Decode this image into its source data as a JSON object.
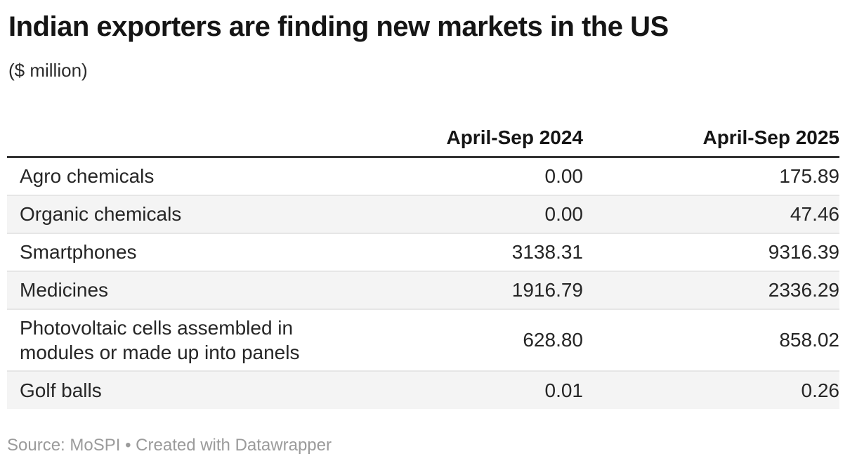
{
  "header": {
    "title": "Indian exporters are finding new markets in the US",
    "subtitle": "($ million)"
  },
  "table": {
    "col_headers": [
      "April-Sep 2024",
      "April-Sep 2025"
    ],
    "rows": [
      {
        "label": "Agro chemicals",
        "v2024": "0.00",
        "v2025": "175.89"
      },
      {
        "label": "Organic chemicals",
        "v2024": "0.00",
        "v2025": "47.46"
      },
      {
        "label": "Smartphones",
        "v2024": "3138.31",
        "v2025": "9316.39"
      },
      {
        "label": "Medicines",
        "v2024": "1916.79",
        "v2025": "2336.29"
      },
      {
        "label": "Photovoltaic cells assembled in modules or made up into panels",
        "v2024": "628.80",
        "v2025": "858.02"
      },
      {
        "label": "Golf balls",
        "v2024": "0.01",
        "v2025": "0.26"
      }
    ]
  },
  "footer": {
    "source_label": "Source: ",
    "source_name": "MoSPI",
    "separator": " • ",
    "attribution": "Created with Datawrapper"
  },
  "colors": {
    "title_text": "#151515",
    "body_text": "#262626",
    "header_rule": "#333333",
    "zebra_row": "#f4f4f4",
    "row_border": "#e6e6e6",
    "footer_text": "#9b9b9b"
  },
  "chart_data": {
    "type": "table",
    "title": "Indian exporters are finding new markets in the US",
    "subtitle": "($ million)",
    "unit": "$ million",
    "columns": [
      "",
      "April-Sep 2024",
      "April-Sep 2025"
    ],
    "rows": [
      [
        "Agro chemicals",
        0.0,
        175.89
      ],
      [
        "Organic chemicals",
        0.0,
        47.46
      ],
      [
        "Smartphones",
        3138.31,
        9316.39
      ],
      [
        "Medicines",
        1916.79,
        2336.29
      ],
      [
        "Photovoltaic cells assembled in modules or made up into panels",
        628.8,
        858.02
      ],
      [
        "Golf balls",
        0.01,
        0.26
      ]
    ],
    "layout_hints": {
      "numeric_alignment": "right",
      "zebra_striping": true,
      "header_rule": "thick dark line under column headers"
    },
    "source": "MoSPI",
    "attribution": "Created with Datawrapper"
  }
}
